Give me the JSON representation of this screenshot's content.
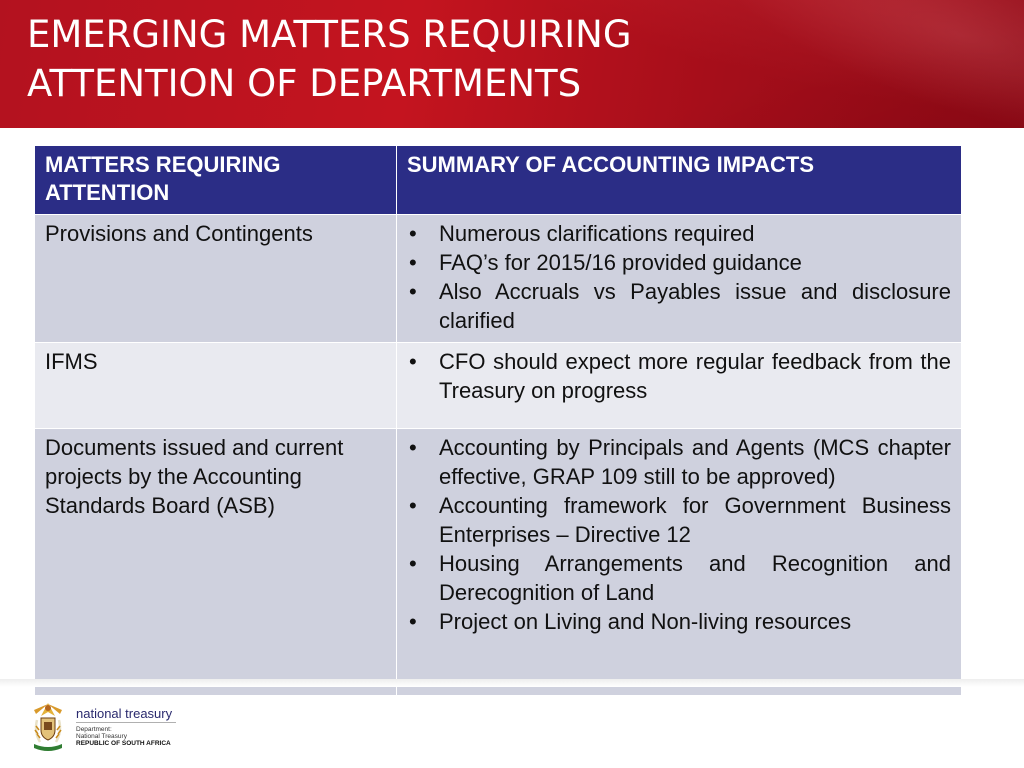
{
  "title": "EMERGING MATTERS REQUIRING\nATTENTION OF DEPARTMENTS",
  "table": {
    "headers": [
      "MATTERS REQUIRING ATTENTION",
      "SUMMARY OF ACCOUNTING IMPACTS"
    ],
    "rows": [
      {
        "matter": "Provisions and Contingents",
        "impacts": [
          "Numerous clarifications required",
          "FAQ’s for 2015/16 provided guidance",
          "Also Accruals vs Payables issue and disclosure clarified"
        ]
      },
      {
        "matter": "IFMS",
        "impacts": [
          "CFO should expect more regular feedback from the Treasury on progress"
        ]
      },
      {
        "matter": "Documents issued and current projects by the Accounting Standards Board (ASB)",
        "impacts": [
          "Accounting by Principals and Agents (MCS chapter effective, GRAP 109 still to be approved)",
          "Accounting framework for Government Business Enterprises – Directive 12",
          "Housing Arrangements and Recognition and Derecognition of Land",
          "Project on Living and Non-living resources"
        ]
      }
    ]
  },
  "footer": {
    "logo_name": "national treasury",
    "logo_line1": "Department:",
    "logo_line2": "National Treasury",
    "logo_line3": "REPUBLIC OF SOUTH AFRICA"
  },
  "colors": {
    "banner": "#c4141f",
    "header_fill": "#2b2d86",
    "row_dark": "#cfd1de",
    "row_light": "#e9eaf0"
  },
  "icons": {
    "crest": "coat-of-arms-icon"
  }
}
